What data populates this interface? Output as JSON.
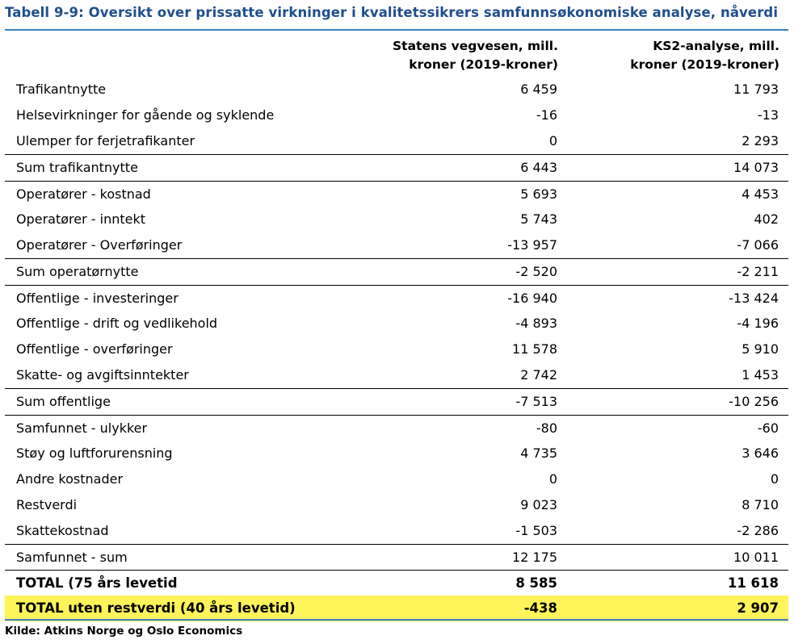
{
  "title": "Tabell 9-9: Oversikt over prissatte virkninger i kvalitetssikrers samfunnsøkonomiske analyse, nåverdi",
  "columns": [
    "Statens vegvesen, mill.\nkroner (2019-kroner)",
    "KS2-analyse, mill.\nkroner (2019-kroner)"
  ],
  "rows": [
    {
      "label": "Trafikantnytte",
      "v1": "6 459",
      "v2": "11 793"
    },
    {
      "label": "Helsevirkninger for gående og syklende",
      "v1": "-16",
      "v2": "-13"
    },
    {
      "label": "Ulemper for ferjetrafikanter",
      "v1": "0",
      "v2": "2 293"
    },
    {
      "label": "Sum trafikantnytte",
      "v1": "6 443",
      "v2": "14 073"
    },
    {
      "label": "Operatører - kostnad",
      "v1": "5 693",
      "v2": "4 453"
    },
    {
      "label": "Operatører - inntekt",
      "v1": "5 743",
      "v2": "402"
    },
    {
      "label": "Operatører - Overføringer",
      "v1": "-13 957",
      "v2": "-7 066"
    },
    {
      "label": "Sum operatørnytte",
      "v1": "-2 520",
      "v2": "-2 211"
    },
    {
      "label": "Offentlige - investeringer",
      "v1": "-16 940",
      "v2": "-13 424"
    },
    {
      "label": "Offentlige - drift og vedlikehold",
      "v1": "-4 893",
      "v2": "-4 196"
    },
    {
      "label": "Offentlige - overføringer",
      "v1": "11 578",
      "v2": "5 910"
    },
    {
      "label": "Skatte- og avgiftsinntekter",
      "v1": "2 742",
      "v2": "1 453"
    },
    {
      "label": "Sum offentlige",
      "v1": "-7 513",
      "v2": "-10 256"
    },
    {
      "label": "Samfunnet - ulykker",
      "v1": "-80",
      "v2": "-60"
    },
    {
      "label": "Støy og luftforurensning",
      "v1": "4 735",
      "v2": "3 646"
    },
    {
      "label": "Andre kostnader",
      "v1": "0",
      "v2": "0"
    },
    {
      "label": "Restverdi",
      "v1": "9 023",
      "v2": "8 710"
    },
    {
      "label": "Skattekostnad",
      "v1": "-1 503",
      "v2": "-2 286"
    },
    {
      "label": "Samfunnet - sum",
      "v1": "12 175",
      "v2": "10 011"
    },
    {
      "label": "TOTAL (75 års levetid",
      "v1": "8 585",
      "v2": "11 618"
    },
    {
      "label": "TOTAL uten restverdi (40 års levetid)",
      "v1": "-438",
      "v2": "2 907"
    }
  ],
  "highlight_color": "#fff45a",
  "title_color": "#1f4e8c",
  "rule_color": "#3f7fc1",
  "source": "Kilde: Atkins Norge og Oslo Economics"
}
